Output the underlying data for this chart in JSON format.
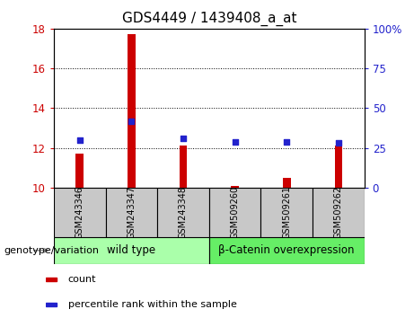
{
  "title": "GDS4449 / 1439408_a_at",
  "samples": [
    "GSM243346",
    "GSM243347",
    "GSM243348",
    "GSM509260",
    "GSM509261",
    "GSM509262"
  ],
  "bar_values": [
    11.7,
    17.7,
    12.1,
    10.1,
    10.5,
    12.1
  ],
  "percentile_values": [
    30,
    42,
    31,
    29,
    29,
    28
  ],
  "bar_color": "#cc0000",
  "dot_color": "#2222cc",
  "bar_bottom": 10,
  "ylim_left": [
    10,
    18
  ],
  "ylim_right": [
    0,
    100
  ],
  "yticks_left": [
    10,
    12,
    14,
    16,
    18
  ],
  "yticks_right": [
    0,
    25,
    50,
    75,
    100
  ],
  "ytick_labels_left": [
    "10",
    "12",
    "14",
    "16",
    "18"
  ],
  "ytick_labels_right": [
    "0",
    "25",
    "50",
    "75",
    "100%"
  ],
  "groups": [
    {
      "label": "wild type",
      "indices": [
        0,
        1,
        2
      ],
      "color": "#aaffaa"
    },
    {
      "label": "β-Catenin overexpression",
      "indices": [
        3,
        4,
        5
      ],
      "color": "#66ee66"
    }
  ],
  "group_label": "genotype/variation",
  "legend_items": [
    {
      "label": "count",
      "color": "#cc0000"
    },
    {
      "label": "percentile rank within the sample",
      "color": "#2222cc"
    }
  ],
  "tick_color_left": "#cc0000",
  "tick_color_right": "#2222cc",
  "bg_plot": "#ffffff",
  "bg_xtick": "#c8c8c8",
  "bar_width": 0.15
}
